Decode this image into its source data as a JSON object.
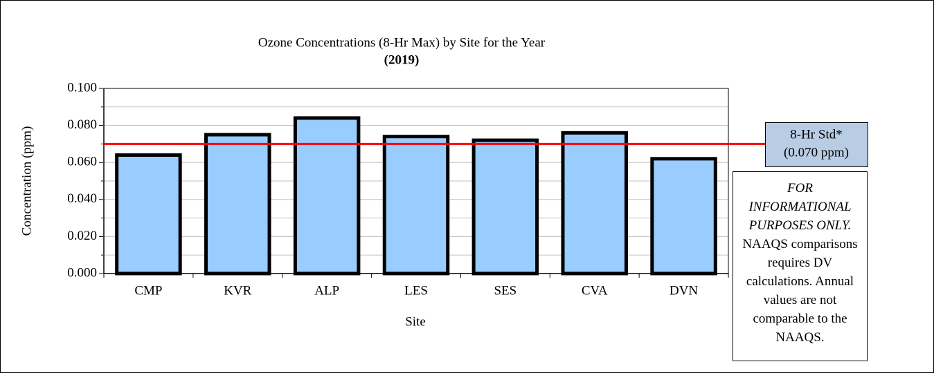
{
  "chart_data": {
    "type": "bar",
    "title": "Ozone Concentrations (8-Hr Max) by Site for the Year",
    "subtitle": "(2019)",
    "x_label": "Site",
    "y_label": "Concentration (ppm)",
    "categories": [
      "CMP",
      "KVR",
      "ALP",
      "LES",
      "SES",
      "CVA",
      "DVN"
    ],
    "values": [
      0.064,
      0.075,
      0.084,
      0.074,
      0.072,
      0.076,
      0.062
    ],
    "color": "#99ccff",
    "ylim": [
      0,
      0.1
    ],
    "yticks": [
      {
        "value": 0,
        "label": "0.000"
      },
      {
        "value": 0.02,
        "label": "0.020"
      },
      {
        "value": 0.04,
        "label": "0.040"
      },
      {
        "value": 0.06,
        "label": "0.060"
      },
      {
        "value": 0.08,
        "label": "0.080"
      },
      {
        "value": 0.1,
        "label": "0.100"
      }
    ],
    "minor_yticks": [
      0.01,
      0.03,
      0.05,
      0.07,
      0.09
    ],
    "grid": true,
    "reference_line": {
      "value": 0.07,
      "color": "#ff0000",
      "label": "8-Hr Std*",
      "sublabel": "(0.070 ppm)"
    },
    "note_italic": "FOR INFORMATIONAL PURPOSES ONLY.",
    "note": "NAAQS comparisons requires DV calculations. Annual values are not comparable to the NAAQS."
  }
}
